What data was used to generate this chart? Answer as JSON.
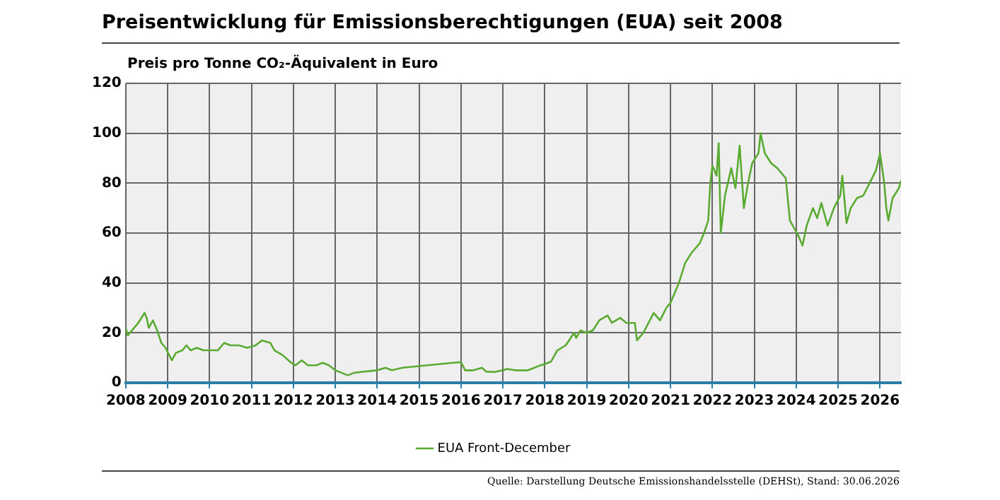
{
  "chart_data": {
    "type": "line",
    "title": "Preisentwicklung für Emissionsberechtigungen (EUA) seit 2008",
    "ylabel": "Preis pro Tonne CO₂-Äquivalent in Euro",
    "x": [
      2008.0,
      2008.05,
      2008.15,
      2008.3,
      2008.45,
      2008.5,
      2008.55,
      2008.65,
      2008.75,
      2008.85,
      2008.95,
      2009.1,
      2009.2,
      2009.35,
      2009.45,
      2009.55,
      2009.7,
      2009.85,
      2010.0,
      2010.2,
      2010.35,
      2010.5,
      2010.7,
      2010.9,
      2011.1,
      2011.25,
      2011.45,
      2011.55,
      2011.75,
      2011.95,
      2012.05,
      2012.2,
      2012.35,
      2012.55,
      2012.7,
      2012.85,
      2013.0,
      2013.15,
      2013.3,
      2013.45,
      2013.7,
      2014.0,
      2014.2,
      2014.35,
      2014.6,
      2014.9,
      2015.2,
      2015.5,
      2015.8,
      2016.0,
      2016.1,
      2016.3,
      2016.5,
      2016.6,
      2016.8,
      2017.0,
      2017.1,
      2017.3,
      2017.6,
      2017.9,
      2018.0,
      2018.15,
      2018.3,
      2018.5,
      2018.7,
      2018.75,
      2018.85,
      2019.0,
      2019.15,
      2019.3,
      2019.5,
      2019.6,
      2019.8,
      2019.95,
      2020.15,
      2020.2,
      2020.35,
      2020.6,
      2020.75,
      2020.9,
      2021.0,
      2021.2,
      2021.35,
      2021.5,
      2021.7,
      2021.8,
      2021.9,
      2021.95,
      2022.0,
      2022.1,
      2022.15,
      2022.2,
      2022.3,
      2022.45,
      2022.55,
      2022.65,
      2022.75,
      2022.85,
      2022.95,
      2023.1,
      2023.15,
      2023.25,
      2023.4,
      2023.55,
      2023.75,
      2023.85,
      2024.05,
      2024.15,
      2024.25,
      2024.4,
      2024.5,
      2024.6,
      2024.75,
      2024.9,
      2025.05,
      2025.1,
      2025.2,
      2025.3,
      2025.45,
      2025.6,
      2025.75,
      2025.9,
      2026.0,
      2026.1,
      2026.15,
      2026.2,
      2026.3,
      2026.45,
      2026.5
    ],
    "series": [
      {
        "name": "EUA Front-December",
        "color": "#5aab32",
        "values": [
          22,
          19,
          21,
          24,
          28,
          26,
          22,
          25,
          21,
          16,
          14,
          9,
          12,
          13,
          15,
          13,
          14,
          13,
          13,
          13,
          16,
          15,
          15,
          14,
          15,
          17,
          16,
          13,
          11,
          8,
          7,
          9,
          7,
          7,
          8,
          7,
          5,
          4,
          3,
          4,
          4.5,
          5,
          6,
          5,
          6,
          6.5,
          7,
          7.5,
          8,
          8.3,
          5,
          5,
          6,
          4.5,
          4.3,
          5,
          5.5,
          5,
          5,
          7,
          7.5,
          8.5,
          13,
          15,
          20,
          18,
          21,
          20,
          21,
          25,
          27,
          24,
          26,
          24,
          24,
          17,
          20,
          28,
          25,
          30,
          32,
          40,
          48,
          52,
          56,
          60,
          65,
          80,
          87,
          83,
          96,
          60,
          75,
          86,
          78,
          95,
          70,
          80,
          88,
          92,
          100,
          92,
          88,
          86,
          82,
          65,
          59,
          55,
          63,
          70,
          66,
          72,
          63,
          70,
          75,
          83,
          64,
          70,
          74,
          75,
          80,
          85,
          92,
          80,
          70,
          65,
          74,
          78,
          81
        ]
      }
    ],
    "xlim": [
      2008,
      2026.5
    ],
    "xticks": [
      2008,
      2009,
      2010,
      2011,
      2012,
      2013,
      2014,
      2015,
      2016,
      2017,
      2018,
      2019,
      2020,
      2021,
      2022,
      2023,
      2024,
      2025,
      2026
    ],
    "ylim": [
      0,
      120
    ],
    "yticks": [
      0,
      20,
      40,
      60,
      80,
      100,
      120
    ],
    "grid": true,
    "legend": "bottom",
    "annotations": [
      "Quelle: Darstellung Deutsche Emissionshandelsstelle (DEHSt), Stand: 30.06.2026"
    ]
  }
}
